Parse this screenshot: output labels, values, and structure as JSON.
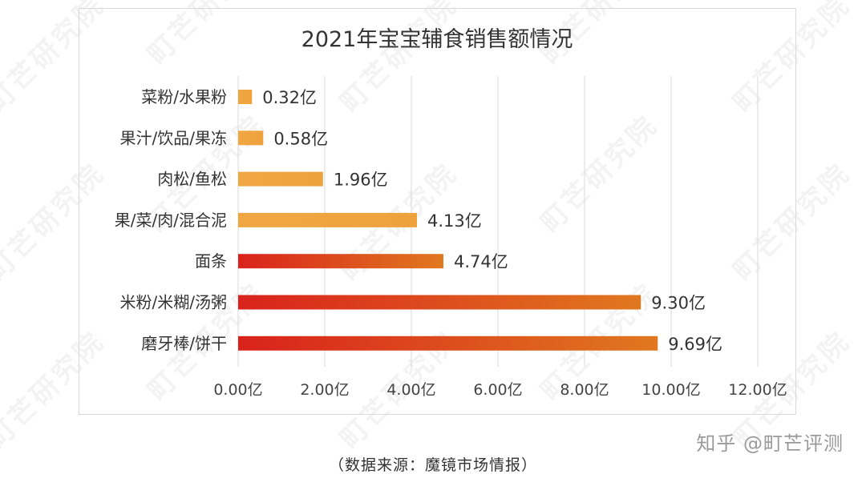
{
  "watermark": {
    "text": "町芒研究院"
  },
  "chart_data": {
    "type": "bar",
    "orientation": "horizontal",
    "title": "2021年宝宝辅食销售额情况",
    "categories": [
      "菜粉/水果粉",
      "果汁/饮品/果冻",
      "肉松/鱼松",
      "果/菜/肉/混合泥",
      "面条",
      "米粉/米糊/汤粥",
      "磨牙棒/饼干"
    ],
    "values": [
      0.32,
      0.58,
      1.96,
      4.13,
      4.74,
      9.3,
      9.69
    ],
    "data_labels": [
      "0.32亿",
      "0.58亿",
      "1.96亿",
      "4.13亿",
      "4.74亿",
      "9.30亿",
      "9.69亿"
    ],
    "x_ticks": [
      "0.00亿",
      "2.00亿",
      "4.00亿",
      "6.00亿",
      "8.00亿",
      "10.00亿",
      "12.00亿"
    ],
    "xlim": [
      0,
      12
    ],
    "grid": true,
    "colors": {
      "light_start": "#f0a742",
      "light_end": "#eea23e",
      "dark_start": "#d9221c",
      "dark_end": "#e0781f"
    }
  },
  "source": "（数据来源：魔镜市场情报）",
  "credit": "知乎 @町芒评测"
}
